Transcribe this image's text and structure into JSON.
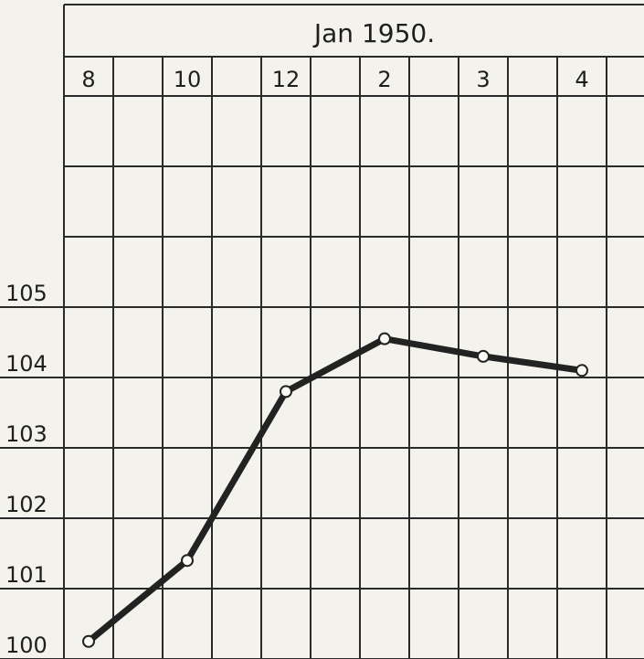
{
  "chart_data": {
    "type": "line",
    "title": "Jan 1950.",
    "categories": [
      "8",
      "10",
      "12",
      "2",
      "3",
      "4"
    ],
    "series": [
      {
        "color": "#222222",
        "values": [
          100.25,
          101.4,
          103.8,
          104.55,
          104.3,
          104.1
        ]
      }
    ],
    "ylim": [
      100,
      108
    ],
    "yticks": [
      100,
      101,
      102,
      103,
      104,
      105
    ],
    "grid": true
  }
}
